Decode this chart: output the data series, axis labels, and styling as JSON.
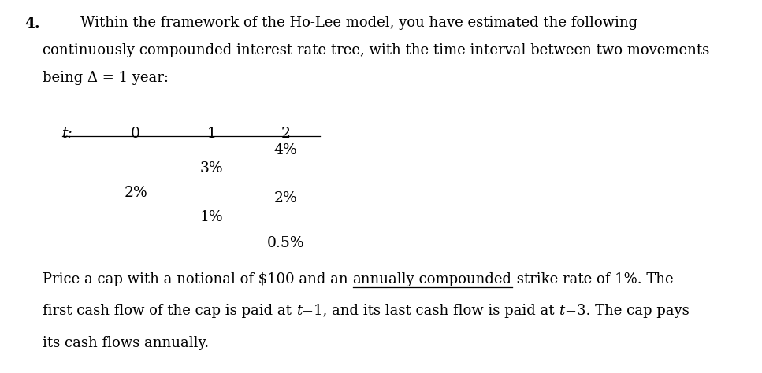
{
  "question_number": "4.",
  "header_line1": "Within the framework of the Ho-Lee model, you have estimated the following",
  "header_line2": "continuously-compounded interest rate tree, with the time interval between two movements",
  "header_line3": "being Δ = 1 year:",
  "table_headers": [
    "t:",
    "0",
    "1",
    "2"
  ],
  "tree_t0": "2%",
  "tree_t1_up": "3%",
  "tree_t1_dn": "1%",
  "tree_t2_up": "4%",
  "tree_t2_mid": "2%",
  "tree_t2_dn": "0.5%",
  "footer_line1_pre": "Price a cap with a notional of $100 and an ",
  "footer_line1_ul": "annually-compounded",
  "footer_line1_post": " strike rate of 1%. The",
  "footer_line2_pre": "first cash flow of the cap is paid at ",
  "footer_line2_t1": "t",
  "footer_line2_mid": "=1, and its last cash flow is paid at ",
  "footer_line2_t2": "t",
  "footer_line2_post": "=3. The cap pays",
  "footer_line3": "its cash flows annually.",
  "background_color": "#ffffff",
  "text_color": "#000000",
  "font_size_body": 13.0,
  "font_size_table": 13.5,
  "font_size_qnum": 13.5
}
